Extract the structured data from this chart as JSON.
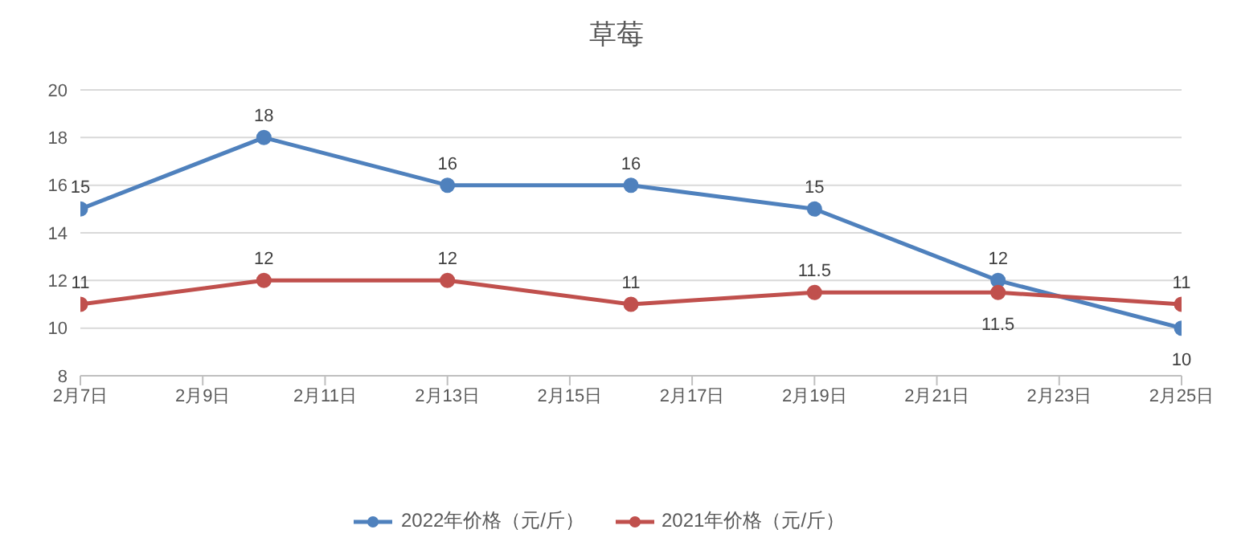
{
  "chart_data": {
    "type": "line",
    "title": "草莓",
    "x": [
      "--02-07",
      "--02-10",
      "--02-13",
      "--02-16",
      "--02-19",
      "--02-22",
      "--02-25"
    ],
    "series": [
      {
        "name": "2022年价格（元/斤）",
        "color": "#4f81bd",
        "values": [
          15,
          18,
          16,
          16,
          15,
          12,
          10
        ]
      },
      {
        "name": "2021年价格（元/斤）",
        "color": "#c0504d",
        "values": [
          11,
          12,
          12,
          11,
          11.5,
          11.5,
          11
        ]
      }
    ],
    "xlim": [
      "--02-07",
      "--02-25"
    ],
    "xticks": [
      {
        "value": "--02-07",
        "label": "2月7日"
      },
      {
        "value": "--02-09",
        "label": "2月9日"
      },
      {
        "value": "--02-11",
        "label": "2月11日"
      },
      {
        "value": "--02-13",
        "label": "2月13日"
      },
      {
        "value": "--02-15",
        "label": "2月15日"
      },
      {
        "value": "--02-17",
        "label": "2月17日"
      },
      {
        "value": "--02-19",
        "label": "2月19日"
      },
      {
        "value": "--02-21",
        "label": "2月21日"
      },
      {
        "value": "--02-23",
        "label": "2月23日"
      },
      {
        "value": "--02-25",
        "label": "2月25日"
      }
    ],
    "ylim": [
      8,
      20
    ],
    "yticks": [
      8,
      10,
      12,
      14,
      16,
      18,
      20
    ],
    "grid": "y",
    "legend": "bottom",
    "marker": "circle",
    "line_style": "solid",
    "data_labels": true
  }
}
